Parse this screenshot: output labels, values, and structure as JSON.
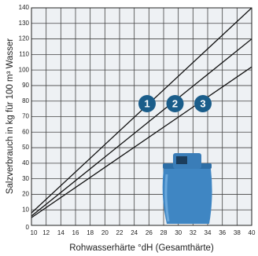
{
  "chart_data": {
    "type": "line",
    "x_label": "Rohwasserhärte °dH (Gesamthärte)",
    "y_label": "Salzverbrauch in kg für 100 m³ Wasser",
    "x": [
      10,
      40
    ],
    "series": [
      {
        "name": "1",
        "color": "#111111",
        "values": [
          8,
          140
        ]
      },
      {
        "name": "2",
        "color": "#111111",
        "values": [
          6,
          120
        ]
      },
      {
        "name": "3",
        "color": "#111111",
        "values": [
          5,
          102
        ]
      }
    ],
    "marker_color": "#1a5d8a",
    "xlim": [
      10,
      40
    ],
    "xticks": [
      10,
      12,
      14,
      16,
      18,
      20,
      22,
      24,
      26,
      28,
      30,
      32,
      34,
      36,
      38,
      40
    ],
    "ylim": [
      0,
      140
    ],
    "yticks": [
      0,
      10,
      20,
      30,
      40,
      50,
      60,
      70,
      80,
      90,
      100,
      110,
      120,
      130,
      140
    ],
    "grid": true
  }
}
